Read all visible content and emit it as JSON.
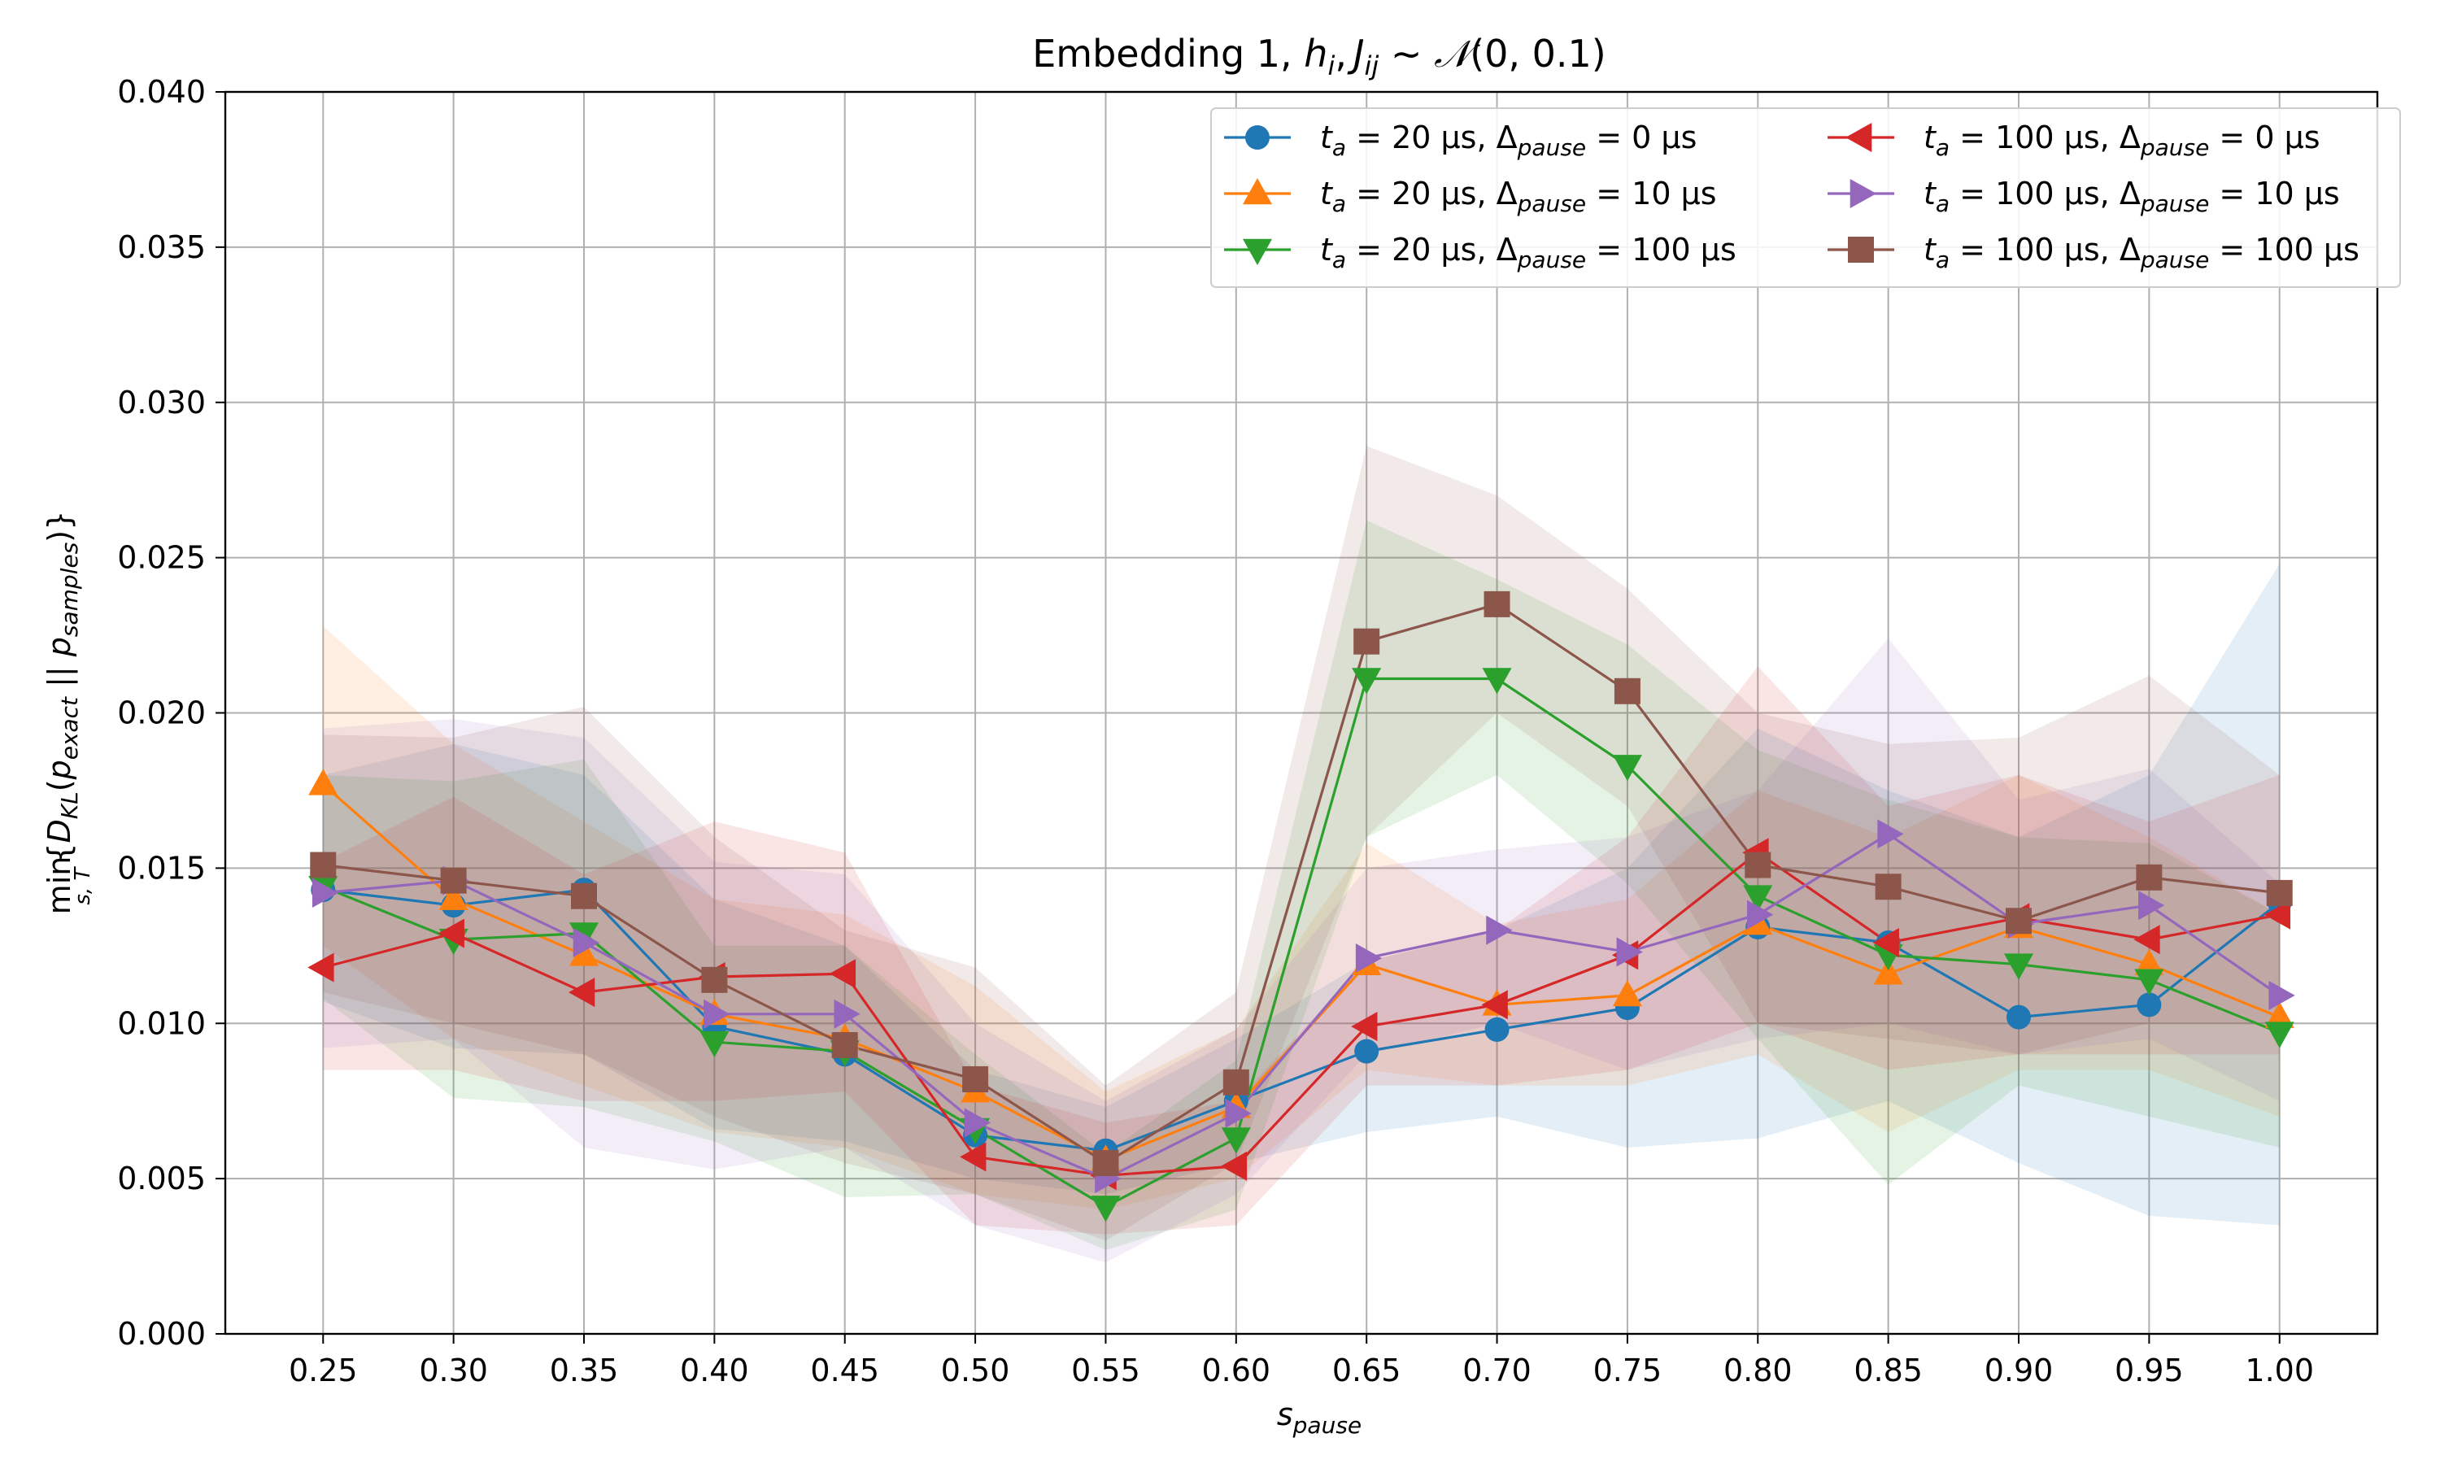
{
  "chart_data": {
    "type": "line",
    "title": "Embedding 1, h_i, J_ij ~ N(0, 0.1)",
    "title_parts": {
      "prefix": "Embedding 1, ",
      "h": "h",
      "i": "i",
      "comma": ",",
      "J": "J",
      "ij": "ij",
      "tilde": " ~ ",
      "N": "𝒩",
      "args": "(0, 0.1)"
    },
    "xlabel": "s_pause",
    "xlabel_parts": {
      "base": "s",
      "sub": "pause"
    },
    "ylabel": "min_{s,T}{D_KL(p_exact || p_samples)}",
    "ylabel_parts": {
      "min": "min",
      "min_sub": "s, T",
      "open": "{",
      "D": "D",
      "D_sub": "KL",
      "paren_open": "(",
      "p1": "p",
      "p1_sub": "exact",
      "sep": " || ",
      "p2": "p",
      "p2_sub": "samples",
      "close": ")}"
    },
    "x": [
      0.25,
      0.3,
      0.35,
      0.4,
      0.45,
      0.5,
      0.55,
      0.6,
      0.65,
      0.7,
      0.75,
      0.8,
      0.85,
      0.9,
      0.95,
      1.0
    ],
    "x_tick_labels": [
      "0.25",
      "0.30",
      "0.35",
      "0.40",
      "0.45",
      "0.50",
      "0.55",
      "0.60",
      "0.65",
      "0.70",
      "0.75",
      "0.80",
      "0.85",
      "0.90",
      "0.95",
      "1.00"
    ],
    "xlim": [
      0.2125,
      1.0375
    ],
    "ylim": [
      0.0,
      0.04
    ],
    "y_ticks": [
      0.0,
      0.005,
      0.01,
      0.015,
      0.02,
      0.025,
      0.03,
      0.035,
      0.04
    ],
    "y_tick_labels": [
      "0.000",
      "0.005",
      "0.010",
      "0.015",
      "0.020",
      "0.025",
      "0.030",
      "0.035",
      "0.040"
    ],
    "grid": true,
    "legend_position": "top-right",
    "legend_columns": 2,
    "series": [
      {
        "name": "t_a = 20 μs, Δ_pause = 0 μs",
        "label_parts": {
          "t": "t",
          "t_sub": "a",
          "t_val": " = 20 μs, ",
          "delta": "Δ",
          "delta_sub": "pause",
          "delta_val": " = 0 μs"
        },
        "color": "#1f77b4",
        "marker": "circle",
        "values": [
          0.0143,
          0.0138,
          0.0143,
          0.0099,
          0.009,
          0.0064,
          0.0059,
          0.0075,
          0.0091,
          0.0098,
          0.0105,
          0.0131,
          0.0126,
          0.0102,
          0.0106,
          0.0139
        ],
        "lower": [
          0.0107,
          0.0092,
          0.009,
          0.0066,
          0.0062,
          0.005,
          0.0045,
          0.0055,
          0.0065,
          0.007,
          0.006,
          0.0063,
          0.0075,
          0.0055,
          0.0038,
          0.0035
        ],
        "upper": [
          0.018,
          0.019,
          0.018,
          0.014,
          0.0125,
          0.0085,
          0.0073,
          0.0095,
          0.012,
          0.013,
          0.015,
          0.0195,
          0.0175,
          0.016,
          0.018,
          0.0248
        ]
      },
      {
        "name": "t_a = 20 μs, Δ_pause = 10 μs",
        "label_parts": {
          "t": "t",
          "t_sub": "a",
          "t_val": " = 20 μs, ",
          "delta": "Δ",
          "delta_sub": "pause",
          "delta_val": " = 10 μs"
        },
        "color": "#ff7f0e",
        "marker": "triangle-up",
        "values": [
          0.0177,
          0.014,
          0.0122,
          0.0103,
          0.0095,
          0.0078,
          0.0056,
          0.0073,
          0.0119,
          0.0106,
          0.0109,
          0.0132,
          0.0116,
          0.0131,
          0.0119,
          0.0102
        ],
        "lower": [
          0.0125,
          0.0095,
          0.008,
          0.0065,
          0.006,
          0.0045,
          0.004,
          0.005,
          0.0085,
          0.008,
          0.008,
          0.009,
          0.0065,
          0.0085,
          0.0085,
          0.007
        ],
        "upper": [
          0.0228,
          0.019,
          0.0165,
          0.014,
          0.0135,
          0.0112,
          0.0078,
          0.0098,
          0.0158,
          0.0132,
          0.014,
          0.0175,
          0.016,
          0.018,
          0.016,
          0.0135
        ]
      },
      {
        "name": "t_a = 20 μs, Δ_pause = 100 μs",
        "label_parts": {
          "t": "t",
          "t_sub": "a",
          "t_val": " = 20 μs, ",
          "delta": "Δ",
          "delta_sub": "pause",
          "delta_val": " = 100 μs"
        },
        "color": "#2ca02c",
        "marker": "triangle-down",
        "values": [
          0.0144,
          0.0127,
          0.0129,
          0.0094,
          0.0091,
          0.0066,
          0.0041,
          0.0063,
          0.0211,
          0.0211,
          0.0183,
          0.0141,
          0.0122,
          0.0119,
          0.0114,
          0.0097
        ],
        "lower": [
          0.0108,
          0.0076,
          0.0073,
          0.0062,
          0.0044,
          0.0045,
          0.0027,
          0.004,
          0.016,
          0.018,
          0.0145,
          0.0095,
          0.0048,
          0.008,
          0.007,
          0.006
        ],
        "upper": [
          0.018,
          0.0178,
          0.0185,
          0.0125,
          0.0125,
          0.009,
          0.0058,
          0.0088,
          0.0262,
          0.0243,
          0.0222,
          0.0188,
          0.0172,
          0.016,
          0.0158,
          0.0135
        ]
      },
      {
        "name": "t_a = 100 μs, Δ_pause = 0 μs",
        "label_parts": {
          "t": "t",
          "t_sub": "a",
          "t_val": " = 100 μs, ",
          "delta": "Δ",
          "delta_sub": "pause",
          "delta_val": " = 0 μs"
        },
        "color": "#d62728",
        "marker": "triangle-left",
        "values": [
          0.0118,
          0.0129,
          0.011,
          0.0115,
          0.0116,
          0.0057,
          0.0051,
          0.0054,
          0.0099,
          0.0106,
          0.0122,
          0.0155,
          0.0126,
          0.0134,
          0.0127,
          0.0135
        ],
        "lower": [
          0.0085,
          0.0085,
          0.0075,
          0.0075,
          0.0078,
          0.0035,
          0.0032,
          0.0035,
          0.008,
          0.008,
          0.0085,
          0.01,
          0.0085,
          0.009,
          0.009,
          0.009
        ],
        "upper": [
          0.0152,
          0.0173,
          0.0148,
          0.0165,
          0.0155,
          0.008,
          0.0068,
          0.0075,
          0.012,
          0.013,
          0.016,
          0.0215,
          0.017,
          0.018,
          0.0165,
          0.018
        ]
      },
      {
        "name": "t_a = 100 μs, Δ_pause = 10 μs",
        "label_parts": {
          "t": "t",
          "t_sub": "a",
          "t_val": " = 100 μs, ",
          "delta": "Δ",
          "delta_sub": "pause",
          "delta_val": " = 10 μs"
        },
        "color": "#9467bd",
        "marker": "triangle-right",
        "values": [
          0.0142,
          0.0146,
          0.0126,
          0.0103,
          0.0103,
          0.0068,
          0.005,
          0.0071,
          0.0121,
          0.013,
          0.0123,
          0.0135,
          0.0161,
          0.0132,
          0.0138,
          0.0109
        ],
        "lower": [
          0.0092,
          0.0095,
          0.006,
          0.0053,
          0.006,
          0.0035,
          0.0023,
          0.0045,
          0.009,
          0.01,
          0.0085,
          0.0095,
          0.01,
          0.009,
          0.0095,
          0.0075
        ],
        "upper": [
          0.0195,
          0.0198,
          0.0192,
          0.0152,
          0.0148,
          0.01,
          0.0075,
          0.0098,
          0.015,
          0.0156,
          0.016,
          0.0175,
          0.0224,
          0.0172,
          0.0182,
          0.0145
        ]
      },
      {
        "name": "t_a = 100 μs, Δ_pause = 100 μs",
        "label_parts": {
          "t": "t",
          "t_sub": "a",
          "t_val": " = 100 μs, ",
          "delta": "Δ",
          "delta_sub": "pause",
          "delta_val": " = 100 μs"
        },
        "color": "#8c564b",
        "marker": "square",
        "values": [
          0.0151,
          0.0146,
          0.0141,
          0.0114,
          0.0093,
          0.0082,
          0.0055,
          0.0081,
          0.0223,
          0.0235,
          0.0207,
          0.0151,
          0.0144,
          0.0133,
          0.0147,
          0.0142
        ],
        "lower": [
          0.011,
          0.01,
          0.009,
          0.007,
          0.0055,
          0.0045,
          0.003,
          0.0055,
          0.016,
          0.02,
          0.017,
          0.01,
          0.0095,
          0.009,
          0.01,
          0.01
        ],
        "upper": [
          0.0193,
          0.0192,
          0.0202,
          0.016,
          0.013,
          0.0118,
          0.008,
          0.011,
          0.0286,
          0.027,
          0.024,
          0.02,
          0.019,
          0.0192,
          0.0212,
          0.018
        ]
      }
    ]
  }
}
